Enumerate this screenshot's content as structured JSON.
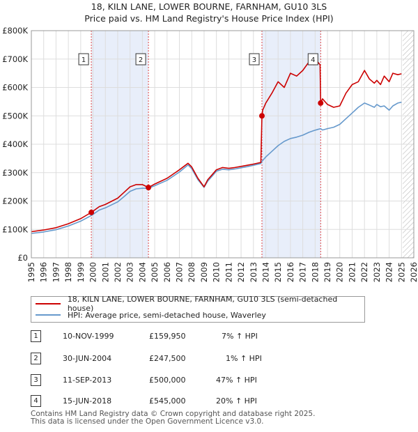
{
  "title_line1": "18, KILN LANE, LOWER BOURNE, FARNHAM, GU10 3LS",
  "title_line2": "Price paid vs. HM Land Registry's House Price Index (HPI)",
  "colors": {
    "price": "#cc0000",
    "hpi": "#6699cc",
    "shade": "#e8eefa",
    "grid": "#dddddd",
    "vline": "#dd4444"
  },
  "chart_data": {
    "type": "line",
    "xlim": [
      1995,
      2026
    ],
    "ylim": [
      0,
      800000
    ],
    "y_ticks": [
      {
        "value": 0,
        "label": "£0"
      },
      {
        "value": 100000,
        "label": "£100K"
      },
      {
        "value": 200000,
        "label": "£200K"
      },
      {
        "value": 300000,
        "label": "£300K"
      },
      {
        "value": 400000,
        "label": "£400K"
      },
      {
        "value": 500000,
        "label": "£500K"
      },
      {
        "value": 600000,
        "label": "£600K"
      },
      {
        "value": 700000,
        "label": "£700K"
      },
      {
        "value": 800000,
        "label": "£800K"
      }
    ],
    "x_ticks": [
      "1995",
      "1996",
      "1997",
      "1998",
      "1999",
      "2000",
      "2001",
      "2002",
      "2003",
      "2004",
      "2005",
      "2006",
      "2007",
      "2008",
      "2009",
      "2010",
      "2011",
      "2012",
      "2013",
      "2014",
      "2015",
      "2016",
      "2017",
      "2018",
      "2019",
      "2020",
      "2021",
      "2022",
      "2023",
      "2024",
      "2025",
      "2026"
    ],
    "shaded_periods": [
      [
        1999.86,
        2004.49
      ],
      [
        2013.69,
        2018.45
      ]
    ],
    "future_hatch_from": 2025.1,
    "series": [
      {
        "name": "18, KILN LANE, LOWER BOURNE, FARNHAM, GU10 3LS (semi-detached house)",
        "color": "#cc0000",
        "x": [
          1995.0,
          1996.0,
          1997.0,
          1998.0,
          1999.0,
          1999.86,
          2000.5,
          2001.0,
          2002.0,
          2002.5,
          2003.0,
          2003.5,
          2004.0,
          2004.49,
          2005.0,
          2006.0,
          2007.0,
          2007.7,
          2008.0,
          2008.5,
          2009.0,
          2009.3,
          2009.6,
          2010.0,
          2010.5,
          2011.0,
          2011.5,
          2012.0,
          2012.5,
          2013.0,
          2013.6,
          2013.69,
          2013.75,
          2014.0,
          2014.5,
          2015.0,
          2015.5,
          2016.0,
          2016.5,
          2017.0,
          2017.5,
          2017.9,
          2018.2,
          2018.4,
          2018.45,
          2018.6,
          2019.0,
          2019.5,
          2020.0,
          2020.5,
          2021.0,
          2021.5,
          2022.0,
          2022.4,
          2022.8,
          2023.0,
          2023.3,
          2023.6,
          2024.0,
          2024.3,
          2024.7,
          2025.0
        ],
        "values": [
          92000,
          98000,
          106000,
          120000,
          138000,
          159950,
          180000,
          188000,
          210000,
          230000,
          250000,
          258000,
          258000,
          247500,
          260000,
          280000,
          310000,
          333000,
          320000,
          280000,
          250000,
          275000,
          290000,
          310000,
          318000,
          315000,
          318000,
          322000,
          326000,
          330000,
          336000,
          500000,
          520000,
          545000,
          580000,
          620000,
          600000,
          650000,
          640000,
          660000,
          690000,
          680000,
          690000,
          680000,
          545000,
          560000,
          540000,
          530000,
          535000,
          580000,
          610000,
          620000,
          660000,
          630000,
          615000,
          625000,
          610000,
          640000,
          620000,
          650000,
          645000,
          648000
        ]
      },
      {
        "name": "HPI: Average price, semi-detached house, Waverley",
        "color": "#6699cc",
        "x": [
          1995.0,
          1996.0,
          1997.0,
          1998.0,
          1999.0,
          1999.86,
          2000.5,
          2001.0,
          2002.0,
          2002.5,
          2003.0,
          2003.5,
          2004.0,
          2004.49,
          2005.0,
          2006.0,
          2007.0,
          2007.7,
          2008.0,
          2008.5,
          2009.0,
          2009.3,
          2009.6,
          2010.0,
          2010.5,
          2011.0,
          2011.5,
          2012.0,
          2012.5,
          2013.0,
          2013.6,
          2013.69,
          2014.0,
          2014.5,
          2015.0,
          2015.5,
          2016.0,
          2016.5,
          2017.0,
          2017.5,
          2017.9,
          2018.2,
          2018.45,
          2018.6,
          2019.0,
          2019.5,
          2020.0,
          2020.5,
          2021.0,
          2021.5,
          2022.0,
          2022.4,
          2022.8,
          2023.0,
          2023.3,
          2023.6,
          2024.0,
          2024.3,
          2024.7,
          2025.0
        ],
        "values": [
          86000,
          91000,
          99000,
          112000,
          129000,
          149000,
          168000,
          176000,
          197000,
          215000,
          234000,
          243000,
          245000,
          245000,
          254000,
          273000,
          302000,
          327000,
          314000,
          275000,
          248000,
          270000,
          285000,
          305000,
          312000,
          310000,
          313000,
          317000,
          321000,
          326000,
          332000,
          340000,
          355000,
          375000,
          395000,
          410000,
          420000,
          425000,
          432000,
          442000,
          448000,
          452000,
          455000,
          450000,
          455000,
          460000,
          470000,
          490000,
          510000,
          530000,
          545000,
          538000,
          530000,
          540000,
          532000,
          535000,
          520000,
          535000,
          545000,
          548000
        ]
      }
    ],
    "transactions": [
      {
        "num": "1",
        "x": 1999.86,
        "value": 159950,
        "date": "10-NOV-1999",
        "price": "£159,950",
        "hpi": "7% ↑ HPI"
      },
      {
        "num": "2",
        "x": 2004.49,
        "value": 247500,
        "date": "30-JUN-2004",
        "price": "£247,500",
        "hpi": "1% ↑ HPI"
      },
      {
        "num": "3",
        "x": 2013.69,
        "value": 500000,
        "date": "11-SEP-2013",
        "price": "£500,000",
        "hpi": "47% ↑ HPI"
      },
      {
        "num": "4",
        "x": 2018.45,
        "value": 545000,
        "date": "15-JUN-2018",
        "price": "£545,000",
        "hpi": "20% ↑ HPI"
      }
    ]
  },
  "legend": {
    "line1": "18, KILN LANE, LOWER BOURNE, FARNHAM, GU10 3LS (semi-detached house)",
    "line2": "HPI: Average price, semi-detached house, Waverley"
  },
  "footer_line1": "Contains HM Land Registry data © Crown copyright and database right 2025.",
  "footer_line2": "This data is licensed under the Open Government Licence v3.0."
}
